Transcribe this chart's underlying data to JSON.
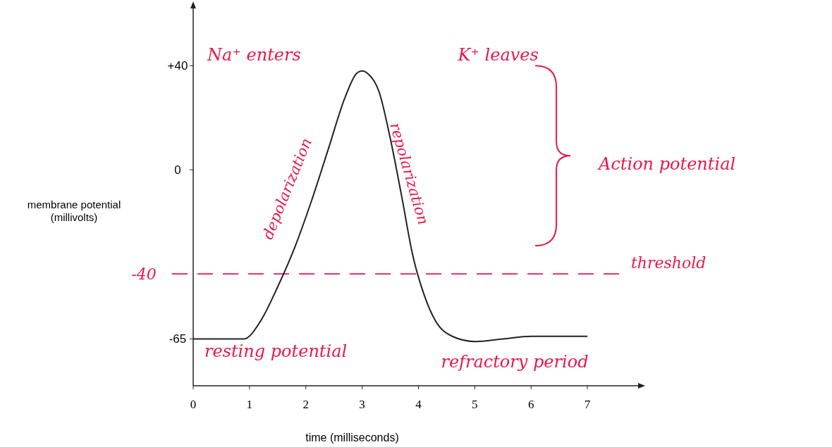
{
  "chart_data": {
    "type": "line",
    "xlabel": "time (milliseconds)",
    "ylabel": "membrane potential\n(millivolts)",
    "x": [
      0,
      0.9,
      1.2,
      1.5,
      1.8,
      2.1,
      2.4,
      2.7,
      2.9,
      3.0,
      3.1,
      3.3,
      3.5,
      3.7,
      3.9,
      4.1,
      4.3,
      4.6,
      5.0,
      5.5,
      6.0,
      7.0
    ],
    "series": [
      {
        "color": "#222222",
        "values": [
          -65,
          -65,
          -58,
          -45,
          -30,
          -12,
          8,
          28,
          37,
          38,
          37,
          30,
          12,
          -10,
          -33,
          -48,
          -58,
          -64,
          -66,
          -65,
          -64,
          -64
        ]
      }
    ],
    "xlim": [
      0,
      7.9
    ],
    "ylim": [
      -83,
      62
    ],
    "xticks": [
      0,
      1,
      2,
      3,
      4,
      5,
      6,
      7
    ],
    "yticks": [
      {
        "value": 40,
        "label": "+40"
      },
      0,
      -65
    ],
    "ref_lines": [
      {
        "axis": "y",
        "value": -40,
        "label": "threshold",
        "color": "#e8174a",
        "line_style": "dashed"
      }
    ],
    "annotations": [
      "Na⁺ enters",
      "K⁺ leaves",
      "depolarization",
      "repolarization",
      "Action potential",
      "resting potential",
      "refractory period",
      "-40"
    ],
    "grid": false
  }
}
